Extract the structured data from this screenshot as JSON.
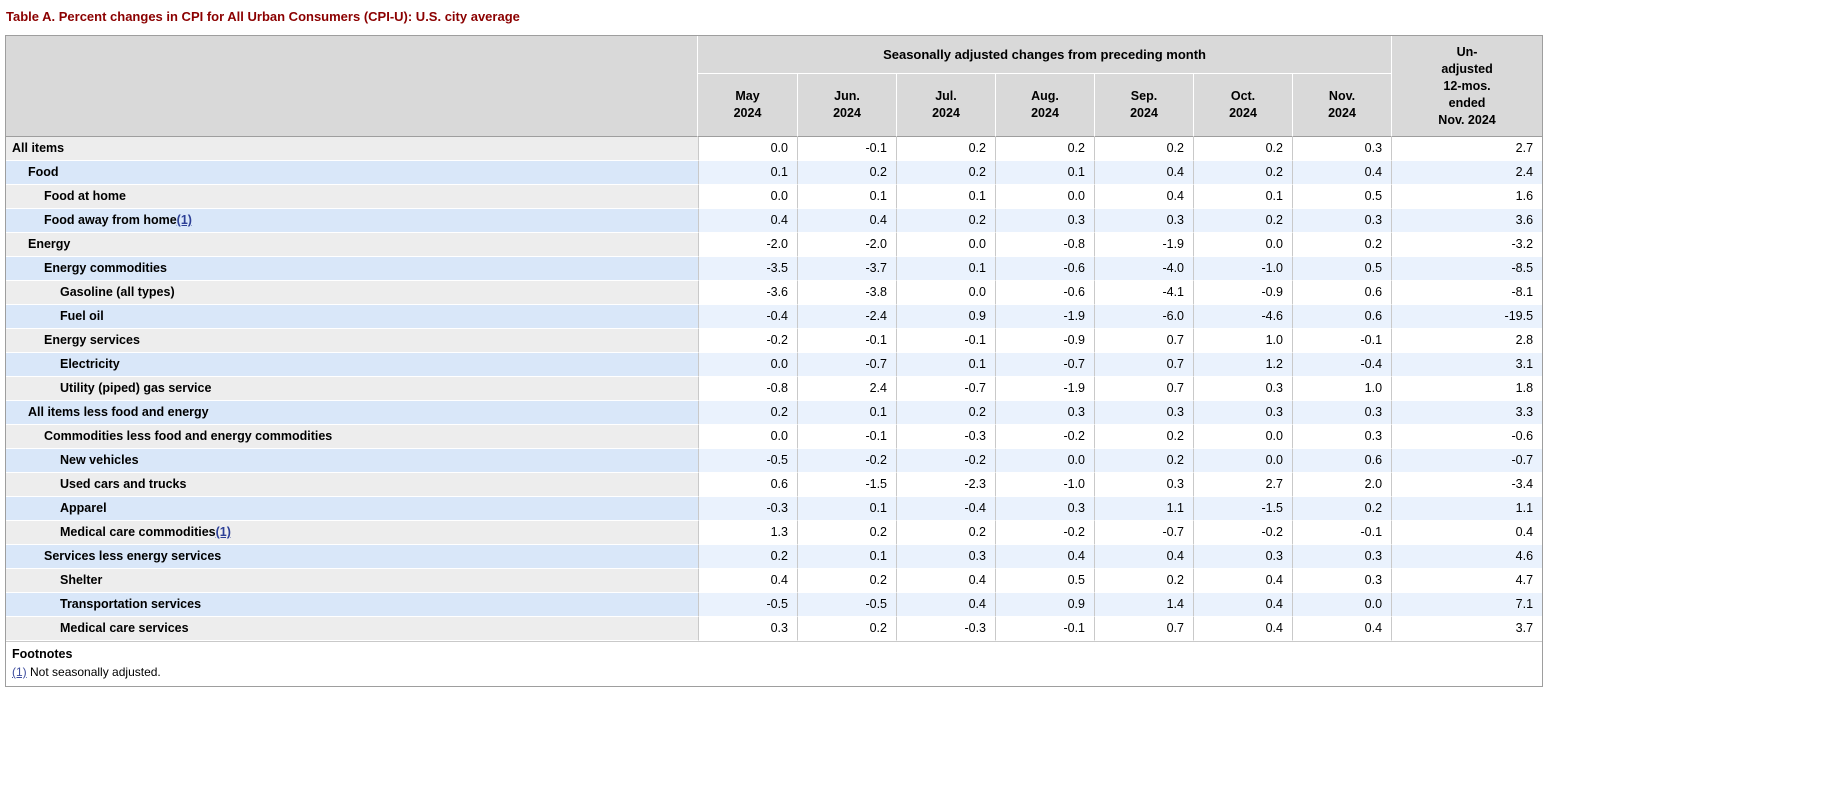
{
  "title": "Table A. Percent changes in CPI for All Urban Consumers (CPI-U): U.S. city average",
  "colors": {
    "title_text": "#8b0000",
    "header_bg": "#d9d9d9",
    "row_gray_label_bg": "#ededed",
    "row_white_cell_bg": "#ffffff",
    "row_blue_label_bg": "#d9e7f9",
    "row_blue_cell_bg": "#eaf2fd",
    "link": "#3d4d9e"
  },
  "table": {
    "group_header": "Seasonally adjusted changes from preceding month",
    "unadjusted_header": "Un-\nadjusted\n12-mos.\nended\nNov. 2024",
    "columns": [
      "May\n2024",
      "Jun.\n2024",
      "Jul.\n2024",
      "Aug.\n2024",
      "Sep.\n2024",
      "Oct.\n2024",
      "Nov.\n2024"
    ],
    "rows": [
      {
        "label": "All items",
        "indent": 0,
        "values": [
          "0.0",
          "-0.1",
          "0.2",
          "0.2",
          "0.2",
          "0.2",
          "0.3"
        ],
        "unadjusted": "2.7"
      },
      {
        "label": "Food",
        "indent": 1,
        "values": [
          "0.1",
          "0.2",
          "0.2",
          "0.1",
          "0.4",
          "0.2",
          "0.4"
        ],
        "unadjusted": "2.4"
      },
      {
        "label": "Food at home",
        "indent": 2,
        "values": [
          "0.0",
          "0.1",
          "0.1",
          "0.0",
          "0.4",
          "0.1",
          "0.5"
        ],
        "unadjusted": "1.6"
      },
      {
        "label": "Food away from home",
        "indent": 2,
        "footnote": "(1)",
        "values": [
          "0.4",
          "0.4",
          "0.2",
          "0.3",
          "0.3",
          "0.2",
          "0.3"
        ],
        "unadjusted": "3.6"
      },
      {
        "label": "Energy",
        "indent": 1,
        "values": [
          "-2.0",
          "-2.0",
          "0.0",
          "-0.8",
          "-1.9",
          "0.0",
          "0.2"
        ],
        "unadjusted": "-3.2"
      },
      {
        "label": "Energy commodities",
        "indent": 2,
        "values": [
          "-3.5",
          "-3.7",
          "0.1",
          "-0.6",
          "-4.0",
          "-1.0",
          "0.5"
        ],
        "unadjusted": "-8.5"
      },
      {
        "label": "Gasoline (all types)",
        "indent": 3,
        "values": [
          "-3.6",
          "-3.8",
          "0.0",
          "-0.6",
          "-4.1",
          "-0.9",
          "0.6"
        ],
        "unadjusted": "-8.1"
      },
      {
        "label": "Fuel oil",
        "indent": 3,
        "values": [
          "-0.4",
          "-2.4",
          "0.9",
          "-1.9",
          "-6.0",
          "-4.6",
          "0.6"
        ],
        "unadjusted": "-19.5"
      },
      {
        "label": "Energy services",
        "indent": 2,
        "values": [
          "-0.2",
          "-0.1",
          "-0.1",
          "-0.9",
          "0.7",
          "1.0",
          "-0.1"
        ],
        "unadjusted": "2.8"
      },
      {
        "label": "Electricity",
        "indent": 3,
        "values": [
          "0.0",
          "-0.7",
          "0.1",
          "-0.7",
          "0.7",
          "1.2",
          "-0.4"
        ],
        "unadjusted": "3.1"
      },
      {
        "label": "Utility (piped) gas service",
        "indent": 3,
        "values": [
          "-0.8",
          "2.4",
          "-0.7",
          "-1.9",
          "0.7",
          "0.3",
          "1.0"
        ],
        "unadjusted": "1.8"
      },
      {
        "label": "All items less food and energy",
        "indent": 1,
        "values": [
          "0.2",
          "0.1",
          "0.2",
          "0.3",
          "0.3",
          "0.3",
          "0.3"
        ],
        "unadjusted": "3.3"
      },
      {
        "label": "Commodities less food and energy commodities",
        "indent": 2,
        "values": [
          "0.0",
          "-0.1",
          "-0.3",
          "-0.2",
          "0.2",
          "0.0",
          "0.3"
        ],
        "unadjusted": "-0.6"
      },
      {
        "label": "New vehicles",
        "indent": 3,
        "values": [
          "-0.5",
          "-0.2",
          "-0.2",
          "0.0",
          "0.2",
          "0.0",
          "0.6"
        ],
        "unadjusted": "-0.7"
      },
      {
        "label": "Used cars and trucks",
        "indent": 3,
        "values": [
          "0.6",
          "-1.5",
          "-2.3",
          "-1.0",
          "0.3",
          "2.7",
          "2.0"
        ],
        "unadjusted": "-3.4"
      },
      {
        "label": "Apparel",
        "indent": 3,
        "values": [
          "-0.3",
          "0.1",
          "-0.4",
          "0.3",
          "1.1",
          "-1.5",
          "0.2"
        ],
        "unadjusted": "1.1"
      },
      {
        "label": "Medical care commodities",
        "indent": 3,
        "footnote": "(1)",
        "values": [
          "1.3",
          "0.2",
          "0.2",
          "-0.2",
          "-0.7",
          "-0.2",
          "-0.1"
        ],
        "unadjusted": "0.4"
      },
      {
        "label": "Services less energy services",
        "indent": 2,
        "values": [
          "0.2",
          "0.1",
          "0.3",
          "0.4",
          "0.4",
          "0.3",
          "0.3"
        ],
        "unadjusted": "4.6"
      },
      {
        "label": "Shelter",
        "indent": 3,
        "values": [
          "0.4",
          "0.2",
          "0.4",
          "0.5",
          "0.2",
          "0.4",
          "0.3"
        ],
        "unadjusted": "4.7"
      },
      {
        "label": "Transportation services",
        "indent": 3,
        "values": [
          "-0.5",
          "-0.5",
          "0.4",
          "0.9",
          "1.4",
          "0.4",
          "0.0"
        ],
        "unadjusted": "7.1"
      },
      {
        "label": "Medical care services",
        "indent": 3,
        "values": [
          "0.3",
          "0.2",
          "-0.3",
          "-0.1",
          "0.7",
          "0.4",
          "0.4"
        ],
        "unadjusted": "3.7"
      }
    ],
    "footnotes": {
      "title": "Footnotes",
      "link": "(1)",
      "text": " Not seasonally adjusted."
    }
  }
}
